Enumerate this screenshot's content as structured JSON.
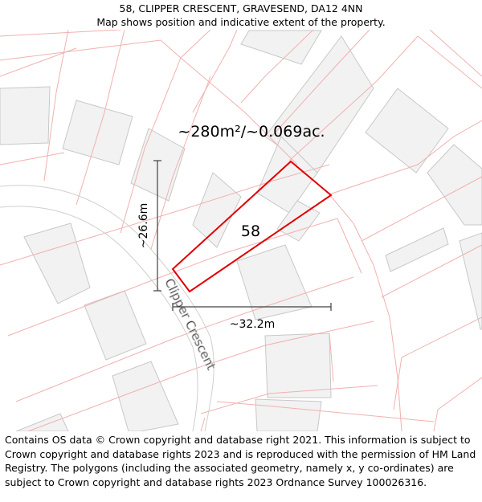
{
  "header": {
    "address": "58, CLIPPER CRESCENT, GRAVESEND, DA12 4NN",
    "subtitle": "Map shows position and indicative extent of the property."
  },
  "map": {
    "area_label": "~280m²/~0.069ac.",
    "plot_number": "58",
    "height_label": "~26.6m",
    "width_label": "~32.2m",
    "street_name": "Clipper Crescent",
    "boundary_color": "#e00000",
    "plot_line_color": "#f2b0b0",
    "building_fill": "#f2f2f2"
  },
  "footer": {
    "attribution": "Contains OS data © Crown copyright and database right 2021. This information is subject to Crown copyright and database rights 2023 and is reproduced with the permission of HM Land Registry. The polygons (including the associated geometry, namely x, y co-ordinates) are subject to Crown copyright and database rights 2023 Ordnance Survey 100026316."
  }
}
